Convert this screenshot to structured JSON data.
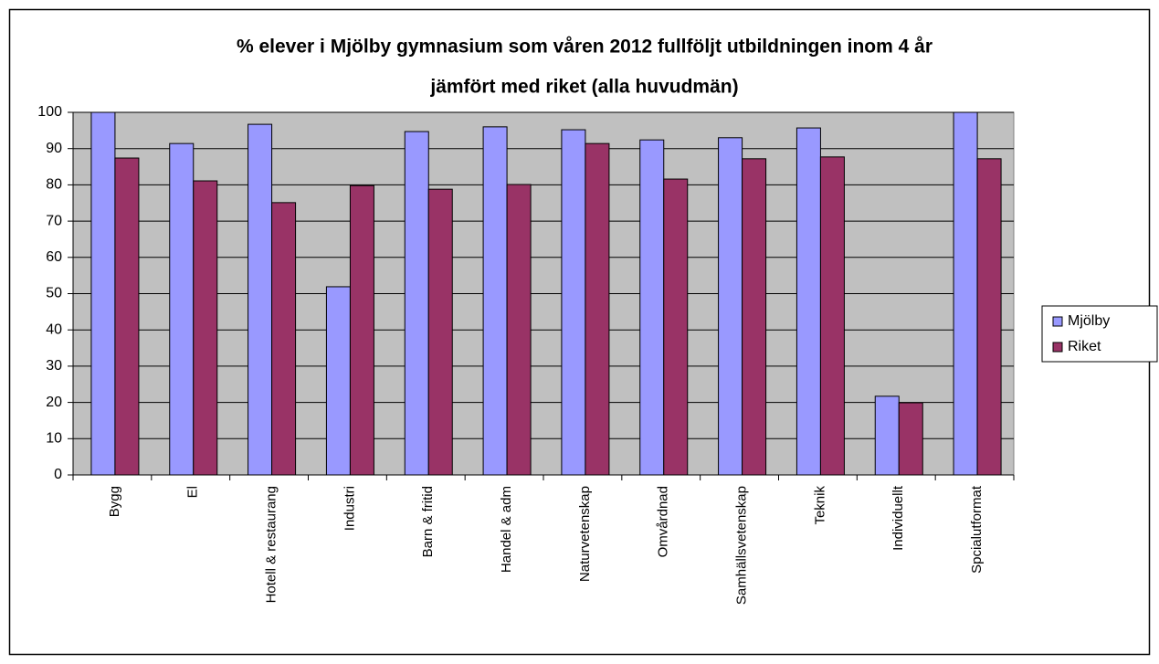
{
  "chart_data": {
    "type": "bar",
    "title": [
      "% elever i Mjölby gymnasium som våren 2012 fullföljt utbildningen inom 4 år",
      "jämfört med riket (alla huvudmän)"
    ],
    "categories": [
      "Bygg",
      "El",
      "Hotell & restaurang",
      "Industri",
      "Barn & fritid",
      "Handel & adm",
      "Naturvetenskap",
      "Omvårdnad",
      "Samhällsvetenskap",
      "Teknik",
      "Individuellt",
      "Spcialutformat"
    ],
    "series": [
      {
        "name": "Mjölby",
        "color": "#9999ff",
        "values": [
          100,
          91.4,
          96.7,
          51.9,
          94.7,
          96,
          95.2,
          92.4,
          93,
          95.7,
          21.7,
          100
        ]
      },
      {
        "name": "Riket",
        "color": "#993366",
        "values": [
          87.4,
          81.1,
          75.1,
          79.8,
          78.8,
          80.1,
          91.4,
          81.6,
          87.2,
          87.7,
          19.9,
          87.2
        ]
      }
    ],
    "ylim": [
      0,
      100
    ],
    "yticks": [
      0,
      10,
      20,
      30,
      40,
      50,
      60,
      70,
      80,
      90,
      100
    ],
    "grid": true,
    "legend": "right"
  }
}
